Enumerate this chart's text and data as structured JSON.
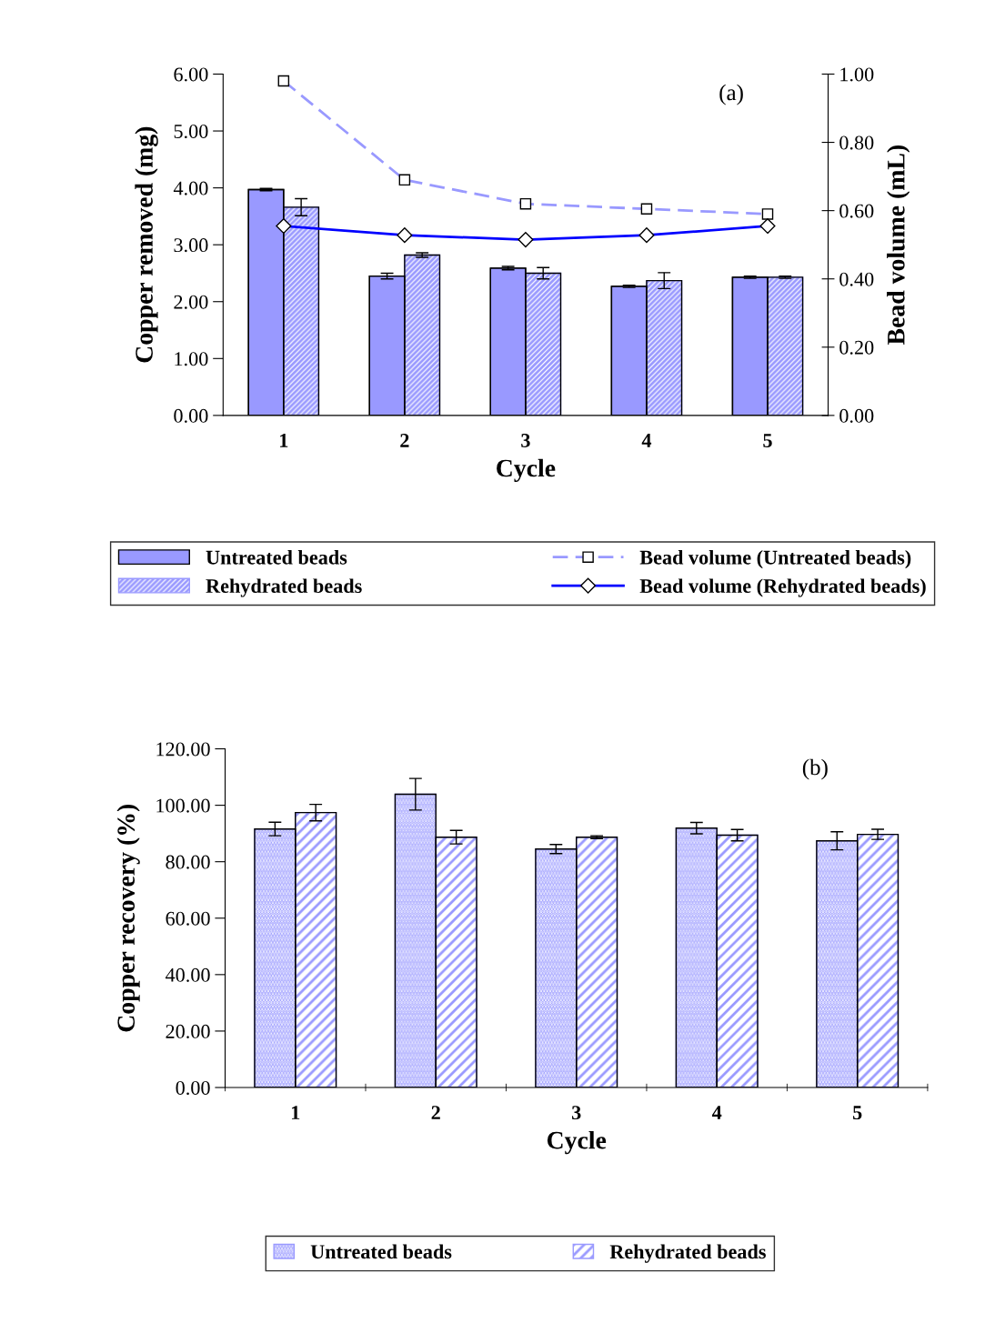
{
  "chart_data": [
    {
      "type": "bar",
      "xlabel": "Cycle",
      "ylabel": "Copper removed (mg)",
      "y2label": "Bead volume (mL)",
      "annotations": [
        "(a)"
      ],
      "categories": [
        "1",
        "2",
        "3",
        "4",
        "5"
      ],
      "series": [
        {
          "name": "Untreated beads",
          "type": "bar",
          "color": "#9999ff",
          "values": [
            3.97,
            2.45,
            2.59,
            2.27,
            2.43
          ],
          "errors": [
            0.02,
            0.05,
            0.03,
            0.02,
            0.02
          ]
        },
        {
          "name": "Rehydrated beads",
          "type": "bar",
          "color": "#9999ff",
          "values": [
            3.66,
            2.82,
            2.5,
            2.37,
            2.43
          ],
          "errors": [
            0.15,
            0.04,
            0.1,
            0.14,
            0.02
          ]
        },
        {
          "name": "Bead volume (Untreated beads)",
          "type": "line",
          "axis": "y2",
          "color": "#9999ff",
          "marker": "square",
          "line_style": "dashed",
          "values": [
            0.98,
            0.69,
            0.62,
            0.605,
            0.59
          ]
        },
        {
          "name": "Bead volume (Rehydrated beads)",
          "type": "line",
          "axis": "y2",
          "color": "#0000ff",
          "marker": "diamond",
          "line_style": "solid",
          "values": [
            0.555,
            0.528,
            0.515,
            0.528,
            0.555
          ]
        }
      ],
      "ylim": [
        0,
        6
      ],
      "yticks": [
        {
          "value": 0,
          "label": "0.00"
        },
        {
          "value": 1,
          "label": "1.00"
        },
        {
          "value": 2,
          "label": "2.00"
        },
        {
          "value": 3,
          "label": "3.00"
        },
        {
          "value": 4,
          "label": "4.00"
        },
        {
          "value": 5,
          "label": "5.00"
        },
        {
          "value": 6,
          "label": "6.00"
        }
      ],
      "y2lim": [
        0,
        1
      ],
      "y2ticks": [
        {
          "value": 0,
          "label": "0.00"
        },
        {
          "value": 0.2,
          "label": "0.20"
        },
        {
          "value": 0.4,
          "label": "0.40"
        },
        {
          "value": 0.6,
          "label": "0.60"
        },
        {
          "value": 0.8,
          "label": "0.80"
        },
        {
          "value": 1,
          "label": "1.00"
        }
      ],
      "grid": false,
      "legend": "bottom"
    },
    {
      "type": "bar",
      "xlabel": "Cycle",
      "ylabel": "Copper recovery (%)",
      "annotations": [
        "(b)"
      ],
      "categories": [
        "1",
        "2",
        "3",
        "4",
        "5"
      ],
      "series": [
        {
          "name": "Untreated beads",
          "color": "#9999ff",
          "values": [
            91.6,
            103.9,
            84.5,
            91.9,
            87.4
          ],
          "errors": [
            2.4,
            5.6,
            1.6,
            2.0,
            3.2
          ]
        },
        {
          "name": "Rehydrated beads",
          "color": "#9999ff",
          "values": [
            97.4,
            88.7,
            88.7,
            89.4,
            89.7
          ],
          "errors": [
            2.9,
            2.4,
            0.5,
            2.0,
            1.8
          ]
        }
      ],
      "ylim": [
        0,
        120
      ],
      "yticks": [
        {
          "value": 0,
          "label": "0.00"
        },
        {
          "value": 20,
          "label": "20.00"
        },
        {
          "value": 40,
          "label": "40.00"
        },
        {
          "value": 60,
          "label": "60.00"
        },
        {
          "value": 80,
          "label": "80.00"
        },
        {
          "value": 100,
          "label": "100.00"
        },
        {
          "value": 120,
          "label": "120.00"
        }
      ],
      "grid": false,
      "legend": "bottom"
    }
  ]
}
